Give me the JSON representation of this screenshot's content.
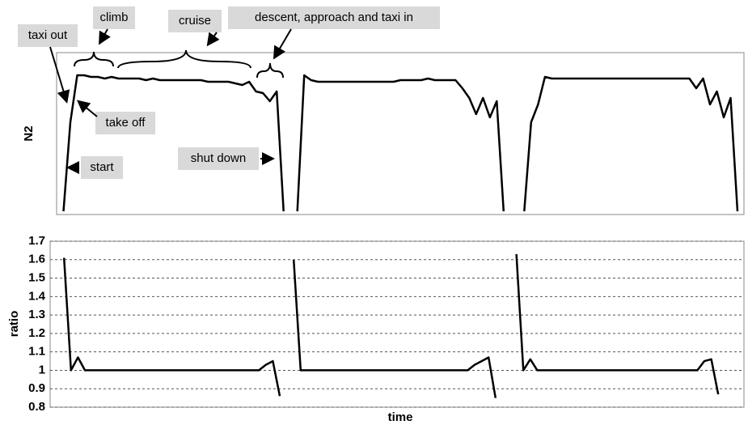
{
  "chart_data": [
    {
      "type": "line",
      "ylabel": "N2",
      "color": "#000000",
      "ylim": [
        0,
        100
      ],
      "annotations": [
        "taxi out",
        "climb",
        "cruise",
        "descent, approach and taxi in",
        "take off",
        "start",
        "shut down"
      ],
      "values": [
        null,
        2,
        57,
        86,
        86,
        85,
        85,
        84,
        85,
        84,
        84,
        84,
        84,
        83,
        84,
        83,
        83,
        83,
        83,
        83,
        83,
        83,
        82,
        82,
        82,
        82,
        81,
        80,
        82,
        76,
        75,
        70,
        76,
        2,
        null,
        2,
        86,
        83,
        82,
        82,
        82,
        82,
        82,
        82,
        82,
        82,
        82,
        82,
        82,
        82,
        83,
        83,
        83,
        83,
        84,
        83,
        83,
        83,
        83,
        78,
        72,
        62,
        72,
        60,
        70,
        2,
        null,
        null,
        2,
        57,
        68,
        85,
        84,
        84,
        84,
        84,
        84,
        84,
        84,
        84,
        84,
        84,
        84,
        84,
        84,
        84,
        84,
        84,
        84,
        84,
        84,
        84,
        84,
        78,
        84,
        68,
        76,
        60,
        72,
        2
      ]
    },
    {
      "type": "line",
      "ylabel": "ratio",
      "xlabel": "time",
      "color": "#000000",
      "ylim": [
        0.8,
        1.7
      ],
      "yticks": [
        0.8,
        0.9,
        1,
        1.1,
        1.2,
        1.3,
        1.4,
        1.5,
        1.6,
        1.7
      ],
      "grid": true,
      "values": [
        null,
        null,
        1.61,
        1,
        1.07,
        1,
        1,
        1,
        1,
        1,
        1,
        1,
        1,
        1,
        1,
        1,
        1,
        1,
        1,
        1,
        1,
        1,
        1,
        1,
        1,
        1,
        1,
        1,
        1,
        1,
        1,
        1.03,
        1.05,
        0.86,
        null,
        1.6,
        1,
        1,
        1,
        1,
        1,
        1,
        1,
        1,
        1,
        1,
        1,
        1,
        1,
        1,
        1,
        1,
        1,
        1,
        1,
        1,
        1,
        1,
        1,
        1,
        1,
        1.03,
        1.05,
        1.07,
        0.85,
        null,
        null,
        1.63,
        1,
        1.06,
        1,
        1,
        1,
        1,
        1,
        1,
        1,
        1,
        1,
        1,
        1,
        1,
        1,
        1,
        1,
        1,
        1,
        1,
        1,
        1,
        1,
        1,
        1,
        1,
        1.05,
        1.06,
        0.87,
        null,
        null,
        null
      ]
    }
  ]
}
